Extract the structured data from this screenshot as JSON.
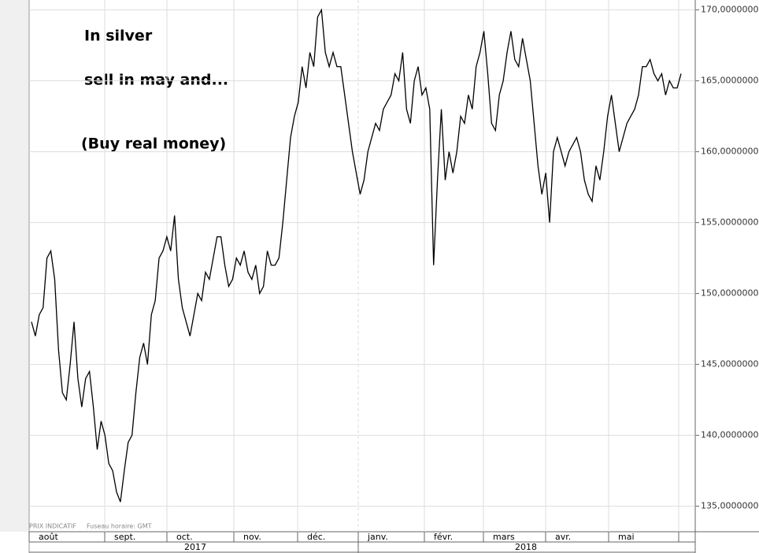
{
  "chart_data": {
    "type": "line",
    "annotations": [
      "In silver",
      "sell in may and...",
      "(Buy real money)"
    ],
    "notes": [
      "PRIX INDICATIF",
      "Fuseau horaire: GMT"
    ],
    "months": [
      "août",
      "sept.",
      "oct.",
      "nov.",
      "déc.",
      "janv.",
      "févr.",
      "mars",
      "avr.",
      "mai"
    ],
    "years": [
      "2017",
      "2018"
    ],
    "color": "#000000",
    "values": [
      148,
      147,
      148.5,
      149,
      152.5,
      153,
      151,
      146,
      143,
      142.5,
      145,
      148,
      144,
      142,
      144,
      144.5,
      142,
      139,
      141,
      140,
      138,
      137.5,
      136,
      135.3,
      137.5,
      139.5,
      140,
      143,
      145.5,
      146.5,
      145,
      148.5,
      149.5,
      152.5,
      153,
      154,
      153,
      155.5,
      151,
      149,
      148,
      147,
      148.5,
      150,
      149.5,
      151.5,
      151,
      152.5,
      154,
      154,
      152,
      150.5,
      151,
      152.5,
      152,
      153,
      151.5,
      151,
      152,
      150,
      150.5,
      153,
      152,
      152,
      152.5,
      155,
      158,
      161,
      162.5,
      163.5,
      166,
      164.5,
      167,
      166,
      169.5,
      170,
      167,
      166,
      167,
      166,
      166,
      164,
      162,
      160,
      158.5,
      157,
      158,
      160,
      161,
      162,
      161.5,
      163,
      163.5,
      164,
      165.5,
      165,
      167,
      163,
      162,
      165,
      166,
      164,
      164.5,
      163,
      152,
      158,
      163,
      158,
      160,
      158.5,
      160,
      162.5,
      162,
      164,
      163,
      166,
      167,
      168.5,
      165.5,
      162,
      161.5,
      164,
      165,
      167,
      168.5,
      166.5,
      166,
      168,
      166.5,
      165,
      162,
      159,
      157,
      158.5,
      155,
      160,
      161,
      160,
      159,
      160,
      160.5,
      161,
      160,
      158,
      157,
      156.5,
      159,
      158,
      160,
      162.5,
      164,
      162,
      160,
      161,
      162,
      162.5,
      163,
      164,
      166,
      166,
      166.5,
      165.5,
      165,
      165.5,
      164,
      165,
      164.5,
      164.5,
      165.5
    ],
    "ylim": [
      133.2,
      170.7
    ],
    "yticks": [
      {
        "value": 135,
        "label": "135,0000000"
      },
      {
        "value": 140,
        "label": "140,0000000"
      },
      {
        "value": 145,
        "label": "145,0000000"
      },
      {
        "value": 150,
        "label": "150,0000000"
      },
      {
        "value": 155,
        "label": "155,0000000"
      },
      {
        "value": 160,
        "label": "160,0000000"
      },
      {
        "value": 165,
        "label": "165,0000000"
      },
      {
        "value": 170,
        "label": "170,0000000"
      }
    ],
    "grid": true
  }
}
